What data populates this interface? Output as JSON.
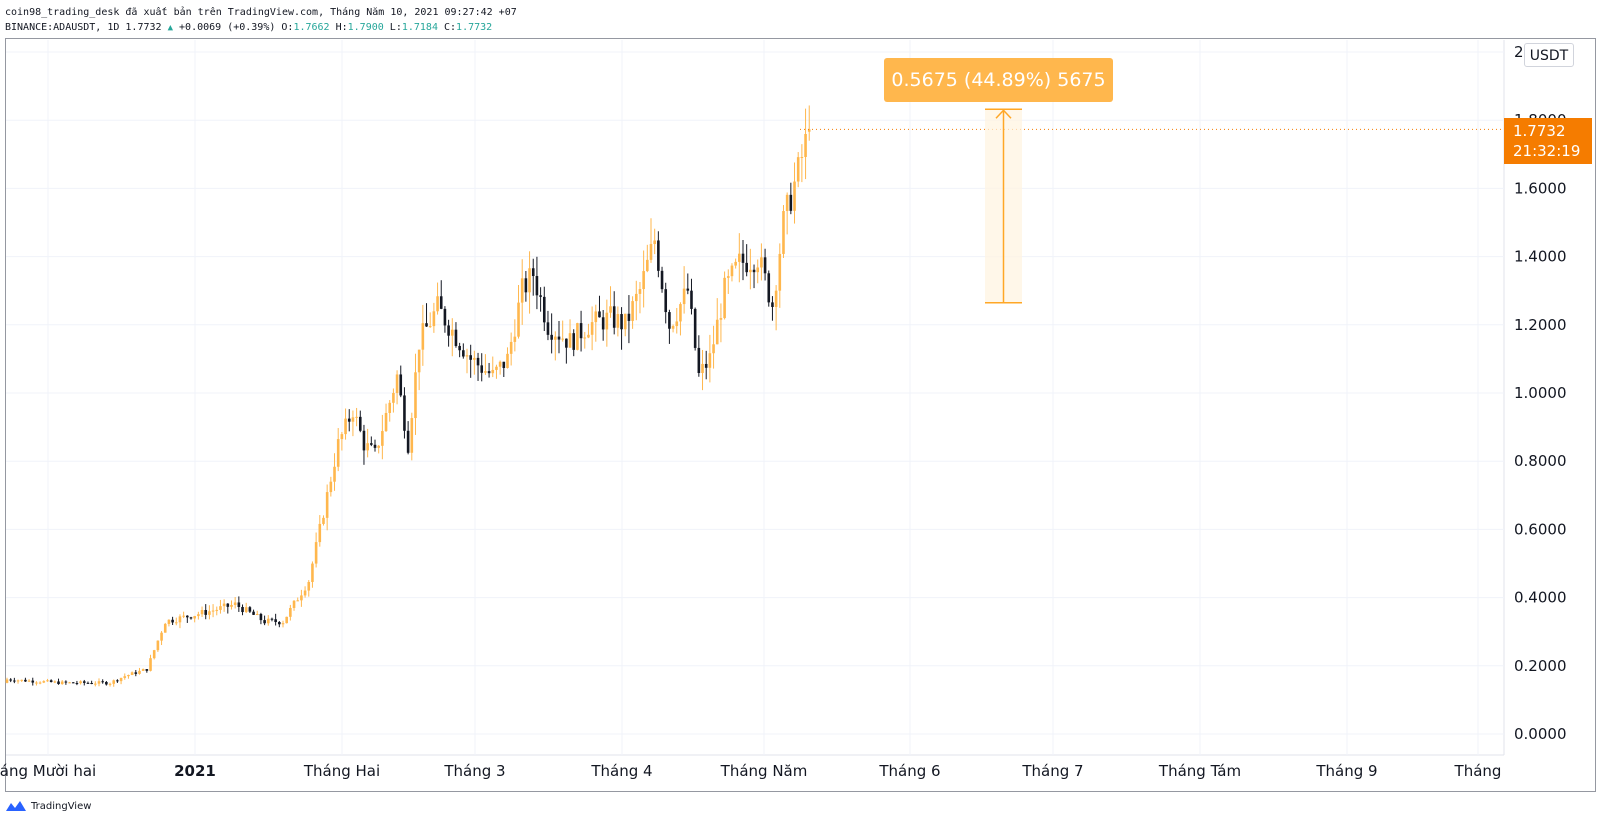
{
  "header": {
    "line1": "coin98_trading_desk đã xuất bản trên TradingView.com, Tháng Năm 10, 2021 09:27:42 +07",
    "symbol": "BINANCE:ADAUSDT, 1D 1.7732",
    "change": "+0.0069 (+0.39%)",
    "o_label": "O:",
    "o": "1.7662",
    "h_label": "H:",
    "h": "1.7900",
    "l_label": "L:",
    "l": "1.7184",
    "c_label": "C:",
    "c": "1.7732"
  },
  "currency_button": "USDT",
  "last_price": {
    "price": "1.7732",
    "countdown": "21:32:19"
  },
  "measure_tool": {
    "label": "0.5675 (44.89%) 5675",
    "from": 1.2645,
    "to": 1.832
  },
  "colors": {
    "up": "#ffb74d",
    "down": "#131722",
    "accent": "#f57c00",
    "grid": "#f0f3fa"
  },
  "brand": "TradingView",
  "chart_data": {
    "type": "candlestick",
    "symbol": "BINANCE:ADAUSDT",
    "interval": "1D",
    "ylim": [
      0,
      2
    ],
    "y_ticks": [
      "0.0000",
      "0.2000",
      "0.4000",
      "0.6000",
      "0.8000",
      "1.0000",
      "1.2000",
      "1.4000",
      "1.6000",
      "1.8000",
      "2"
    ],
    "x_ticks": [
      {
        "label": "áng Mười hai",
        "bold": false
      },
      {
        "label": "2021",
        "bold": true
      },
      {
        "label": "Tháng Hai",
        "bold": false
      },
      {
        "label": "Tháng 3",
        "bold": false
      },
      {
        "label": "Tháng 4",
        "bold": false
      },
      {
        "label": "Tháng Năm",
        "bold": false
      },
      {
        "label": "Tháng 6",
        "bold": false
      },
      {
        "label": "Tháng 7",
        "bold": false
      },
      {
        "label": "Tháng Tám",
        "bold": false
      },
      {
        "label": "Tháng 9",
        "bold": false
      },
      {
        "label": "Tháng",
        "bold": false
      }
    ],
    "key_closes": [
      {
        "date": "2020-12-01",
        "close": 0.16
      },
      {
        "date": "2021-01-01",
        "close": 0.18
      },
      {
        "date": "2021-02-01",
        "close": 0.4
      },
      {
        "date": "2021-03-01",
        "close": 1.3
      },
      {
        "date": "2021-04-01",
        "close": 1.2
      },
      {
        "date": "2021-05-10",
        "close": 1.7732
      }
    ],
    "grid": true
  }
}
